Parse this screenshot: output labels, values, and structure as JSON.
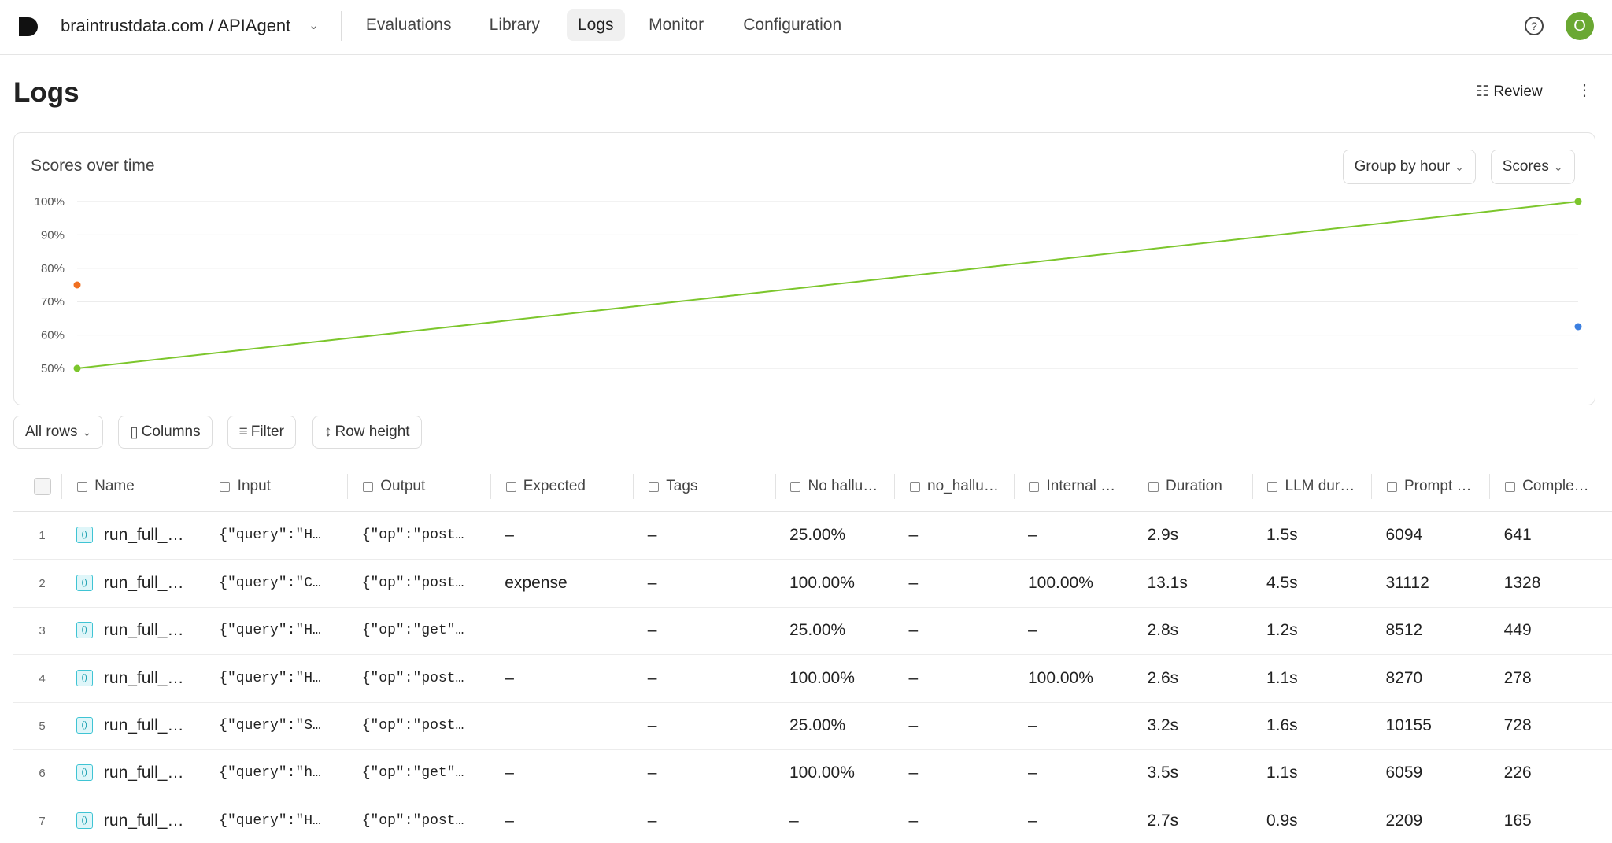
{
  "nav": {
    "brand": "braintrustdata.com / APIAgent",
    "tabs": [
      "Evaluations",
      "Library",
      "Logs",
      "Monitor",
      "Configuration"
    ],
    "active_tab": 2,
    "avatar": "O"
  },
  "header": {
    "title": "Logs",
    "action": "Review"
  },
  "chart_data": {
    "type": "line",
    "title": "Scores over time",
    "controls": [
      "Group by hour",
      "Scores"
    ],
    "categories": [
      null,
      null
    ],
    "ylim": [
      50,
      100
    ],
    "yticks": [
      {
        "value": 50,
        "label": "50%"
      },
      {
        "value": 60,
        "label": "60%"
      },
      {
        "value": 70,
        "label": "70%"
      },
      {
        "value": 80,
        "label": "80%"
      },
      {
        "value": 90,
        "label": "90%"
      },
      {
        "value": 100,
        "label": "100%"
      }
    ],
    "grid": true,
    "series": [
      {
        "color": "#7cc62c",
        "values": [
          50,
          100
        ]
      },
      {
        "color": "#f07022",
        "values": [
          75,
          null
        ]
      },
      {
        "color": "#3b7fe0",
        "values": [
          null,
          62.5
        ]
      }
    ]
  },
  "toolbar": [
    "All rows",
    "Columns",
    "Filter",
    "Row height"
  ],
  "table": {
    "columns": [
      "Name",
      "Input",
      "Output",
      "Expected",
      "Tags",
      "No hallu…",
      "no_hallu…",
      "Internal …",
      "Duration",
      "LLM dur…",
      "Prompt …",
      "Comple…"
    ],
    "rows": [
      [
        "1",
        "run_full_…",
        "{\"query\":\"H…",
        "{\"op\":\"post…",
        "–",
        "–",
        "25.00%",
        "–",
        "–",
        "2.9s",
        "1.5s",
        "6094",
        "641"
      ],
      [
        "2",
        "run_full_…",
        "{\"query\":\"C…",
        "{\"op\":\"post…",
        "expense",
        "–",
        "100.00%",
        "–",
        "100.00%",
        "13.1s",
        "4.5s",
        "31112",
        "1328"
      ],
      [
        "3",
        "run_full_…",
        "{\"query\":\"H…",
        "{\"op\":\"get\"…",
        null,
        "–",
        "25.00%",
        "–",
        "–",
        "2.8s",
        "1.2s",
        "8512",
        "449"
      ],
      [
        "4",
        "run_full_…",
        "{\"query\":\"H…",
        "{\"op\":\"post…",
        "–",
        "–",
        "100.00%",
        "–",
        "100.00%",
        "2.6s",
        "1.1s",
        "8270",
        "278"
      ],
      [
        "5",
        "run_full_…",
        "{\"query\":\"S…",
        "{\"op\":\"post…",
        null,
        "–",
        "25.00%",
        "–",
        "–",
        "3.2s",
        "1.6s",
        "10155",
        "728"
      ],
      [
        "6",
        "run_full_…",
        "{\"query\":\"h…",
        "{\"op\":\"get\"…",
        "–",
        "–",
        "100.00%",
        "–",
        "–",
        "3.5s",
        "1.1s",
        "6059",
        "226"
      ],
      [
        "7",
        "run_full_…",
        "{\"query\":\"H…",
        "{\"op\":\"post…",
        "–",
        "–",
        "–",
        "–",
        "–",
        "2.7s",
        "0.9s",
        "2209",
        "165"
      ]
    ]
  }
}
